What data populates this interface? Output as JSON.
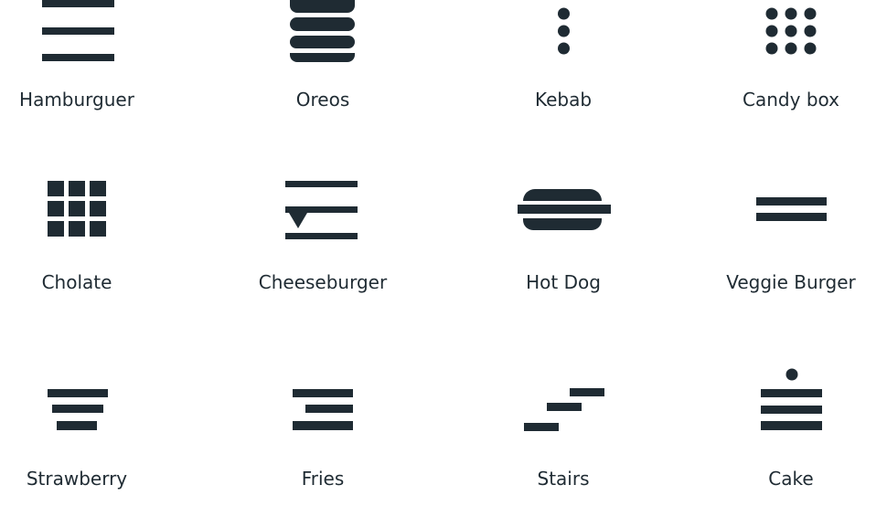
{
  "ink_color": "#1f2b33",
  "background_color": "#ffffff",
  "items": [
    {
      "label": "Hamburguer",
      "icon": "hamburger-icon"
    },
    {
      "label": "Oreos",
      "icon": "oreos-icon"
    },
    {
      "label": "Kebab",
      "icon": "kebab-icon"
    },
    {
      "label": "Candy box",
      "icon": "candy-box-icon"
    },
    {
      "label": "Cholate",
      "icon": "chocolate-icon"
    },
    {
      "label": "Cheeseburger",
      "icon": "cheeseburger-icon"
    },
    {
      "label": "Hot Dog",
      "icon": "hot-dog-icon"
    },
    {
      "label": "Veggie Burger",
      "icon": "veggie-burger-icon"
    },
    {
      "label": "Strawberry",
      "icon": "strawberry-icon"
    },
    {
      "label": "Fries",
      "icon": "fries-icon"
    },
    {
      "label": "Stairs",
      "icon": "stairs-icon"
    },
    {
      "label": "Cake",
      "icon": "cake-icon"
    }
  ]
}
